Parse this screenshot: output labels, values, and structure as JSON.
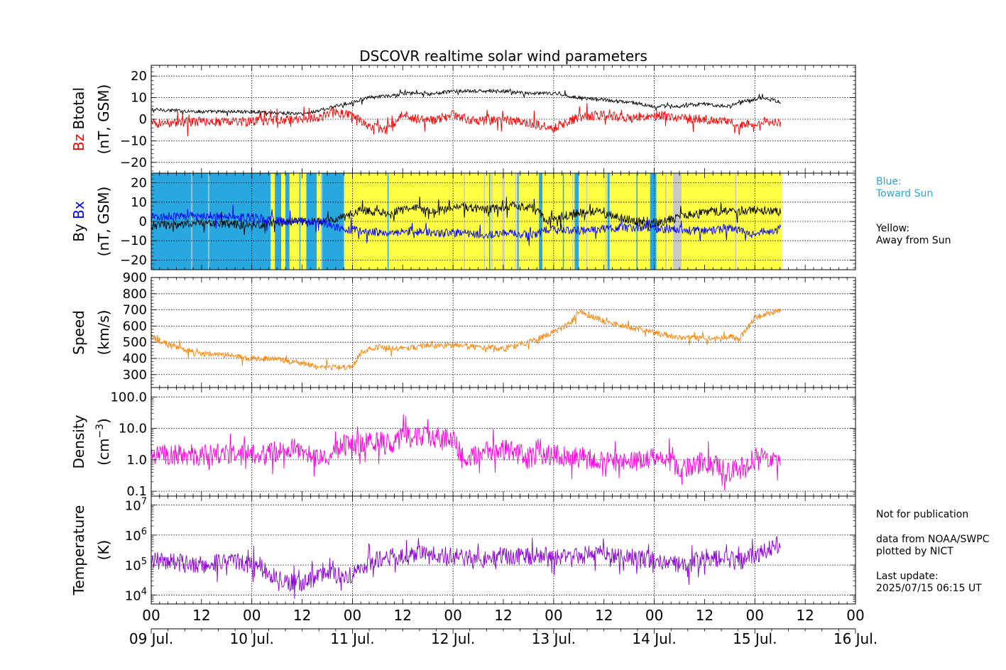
{
  "title": "DSCOVR realtime solar wind parameters",
  "chart_data": {
    "type": "line",
    "title": "DSCOVR realtime solar wind parameters",
    "x_ticks": {
      "hours": [
        "00",
        "12",
        "00",
        "12",
        "00",
        "12",
        "00",
        "12",
        "00",
        "12",
        "00",
        "12",
        "00",
        "12",
        "00"
      ],
      "dates": [
        "09 Jul.",
        "10 Jul.",
        "11 Jul.",
        "12 Jul.",
        "13 Jul.",
        "14 Jul.",
        "15 Jul.",
        "16 Jul."
      ]
    },
    "x_range_hours": [
      0,
      168
    ],
    "data_end_hour": 150.25,
    "panels": [
      {
        "id": "field",
        "ylabel_main": "(nT, GSM)",
        "ylabel_series": [
          {
            "text": "Bz",
            "color": "#ff0000"
          },
          {
            "text": "Btotal",
            "color": "#000000"
          }
        ],
        "scale": "linear",
        "ylim": [
          -25,
          25
        ],
        "yticks": [
          -20,
          -10,
          0,
          10,
          20
        ],
        "ytick_labels": [
          "−20",
          "−10",
          "0",
          "10",
          "20"
        ],
        "series": [
          {
            "name": "Btotal",
            "color": "#000000",
            "x": [
              0,
              12,
              24,
              36,
              40,
              44,
              48,
              52,
              58,
              60,
              64,
              66,
              72,
              78,
              84,
              90,
              96,
              102,
              108,
              114,
              120,
              126,
              132,
              138,
              140,
              146,
              150
            ],
            "y": [
              4.5,
              3.5,
              3.5,
              2.5,
              4,
              6,
              8,
              10,
              11,
              12,
              12,
              11.5,
              13,
              13,
              13,
              12,
              12,
              10,
              9,
              8,
              6,
              6,
              7,
              6,
              8,
              10,
              8
            ]
          },
          {
            "name": "Bz",
            "color": "#ff0000",
            "x": [
              0,
              12,
              24,
              34,
              40,
              44,
              48,
              52,
              56,
              60,
              66,
              72,
              78,
              84,
              90,
              96,
              102,
              108,
              114,
              120,
              126,
              132,
              138,
              140,
              146,
              150
            ],
            "y": [
              -2,
              -1,
              -1,
              0,
              1,
              3,
              2,
              -3,
              -5,
              2,
              -1,
              2,
              -1,
              0,
              -2,
              -4,
              1,
              2,
              0,
              2,
              1,
              0,
              -1,
              -3,
              -1,
              -2
            ]
          }
        ]
      },
      {
        "id": "imf",
        "ylabel_main": "(nT, GSM)",
        "ylabel_series": [
          {
            "text": "By",
            "color": "#000000"
          },
          {
            "text": "Bx",
            "color": "#0000ff"
          }
        ],
        "scale": "linear",
        "ylim": [
          -25,
          25
        ],
        "yticks": [
          -20,
          -10,
          0,
          10,
          20
        ],
        "ytick_labels": [
          "−20",
          "−10",
          "0",
          "10",
          "20"
        ],
        "sector_colors": {
          "toward": "#29a8e0",
          "away": "#ffff44",
          "gap": "#c8c8c8"
        },
        "sectors": [
          {
            "from": 0,
            "to": 28.5,
            "kind": "toward"
          },
          {
            "from": 28.5,
            "to": 29.5,
            "kind": "away"
          },
          {
            "from": 29.5,
            "to": 31,
            "kind": "toward"
          },
          {
            "from": 31,
            "to": 32,
            "kind": "away"
          },
          {
            "from": 32,
            "to": 33,
            "kind": "toward"
          },
          {
            "from": 33,
            "to": 37,
            "kind": "away"
          },
          {
            "from": 37,
            "to": 39.5,
            "kind": "toward"
          },
          {
            "from": 39.5,
            "to": 40.5,
            "kind": "away"
          },
          {
            "from": 40.5,
            "to": 46,
            "kind": "toward"
          },
          {
            "from": 46,
            "to": 92.5,
            "kind": "away"
          },
          {
            "from": 92.5,
            "to": 93.3,
            "kind": "toward"
          },
          {
            "from": 93.3,
            "to": 101,
            "kind": "away"
          },
          {
            "from": 101,
            "to": 102,
            "kind": "toward"
          },
          {
            "from": 102,
            "to": 119,
            "kind": "away"
          },
          {
            "from": 119,
            "to": 120.5,
            "kind": "toward"
          },
          {
            "from": 120.5,
            "to": 124.5,
            "kind": "away"
          },
          {
            "from": 124.5,
            "to": 126.5,
            "kind": "gap"
          },
          {
            "from": 126.5,
            "to": 150.5,
            "kind": "away"
          }
        ],
        "series": [
          {
            "name": "By",
            "color": "#000000",
            "x": [
              0,
              12,
              24,
              34,
              40,
              46,
              50,
              56,
              62,
              68,
              74,
              80,
              86,
              92,
              94,
              100,
              106,
              112,
              118,
              122,
              126,
              132,
              138,
              144,
              150
            ],
            "y": [
              -2,
              -1,
              -2,
              0,
              0,
              2,
              6,
              4,
              7,
              5,
              8,
              6,
              8,
              7,
              0,
              4,
              5,
              2,
              -1,
              0,
              2,
              5,
              5,
              6,
              5
            ]
          },
          {
            "name": "Bx",
            "color": "#0000ff",
            "x": [
              0,
              12,
              24,
              34,
              40,
              46,
              50,
              56,
              62,
              68,
              74,
              80,
              86,
              92,
              94,
              100,
              106,
              112,
              118,
              122,
              126,
              132,
              138,
              144,
              150
            ],
            "y": [
              2,
              3,
              2,
              0,
              0,
              -4,
              -5,
              -6,
              -5,
              -6,
              -6,
              -7,
              -6,
              -7,
              -4,
              -5,
              -4,
              -3,
              -3,
              -4,
              -4,
              -5,
              -4,
              -6,
              -4
            ]
          }
        ]
      },
      {
        "id": "speed",
        "ylabel_main": "(km/s)",
        "ylabel_series": [
          {
            "text": "Speed",
            "color": "#000000"
          }
        ],
        "scale": "linear",
        "ylim": [
          220,
          900
        ],
        "yticks": [
          300,
          400,
          500,
          600,
          700,
          800,
          900
        ],
        "ytick_labels": [
          "300",
          "400",
          "500",
          "600",
          "700",
          "800",
          "900"
        ],
        "series": [
          {
            "name": "Speed",
            "color": "#ff8000",
            "x": [
              0,
              6,
              12,
              18,
              24,
              30,
              36,
              40,
              44,
              48,
              50,
              54,
              60,
              66,
              72,
              78,
              84,
              90,
              96,
              100,
              102,
              108,
              114,
              120,
              126,
              132,
              136,
              138,
              140,
              144,
              150
            ],
            "y": [
              530,
              470,
              430,
              420,
              400,
              395,
              370,
              345,
              340,
              350,
              440,
              470,
              460,
              480,
              480,
              470,
              460,
              500,
              560,
              620,
              690,
              630,
              590,
              560,
              530,
              520,
              520,
              540,
              510,
              650,
              700
            ]
          }
        ]
      },
      {
        "id": "density",
        "ylabel_main": "(cm",
        "ylabel_sup": "−3",
        "ylabel_close": ")",
        "ylabel_series": [
          {
            "text": "Density",
            "color": "#000000"
          }
        ],
        "scale": "log",
        "ylim": [
          0.07,
          200
        ],
        "yticks": [
          0.1,
          1.0,
          10.0,
          100.0
        ],
        "ytick_labels": [
          "0.1",
          "1.0",
          "10.0",
          "100.0"
        ],
        "series": [
          {
            "name": "Density",
            "color": "#ff00dd",
            "x": [
              0,
              6,
              12,
              18,
              24,
              28,
              30,
              34,
              36,
              40,
              42,
              46,
              50,
              54,
              56,
              60,
              64,
              68,
              72,
              74,
              78,
              84,
              90,
              96,
              102,
              108,
              114,
              120,
              126,
              132,
              138,
              142,
              146,
              150
            ],
            "y": [
              1.5,
              1.5,
              1.4,
              1.5,
              1.4,
              1.5,
              2,
              2.5,
              2,
              1.2,
              1.4,
              3,
              3,
              4,
              3,
              5,
              6,
              6,
              4,
              1.2,
              1.5,
              2.2,
              1.2,
              1.5,
              1.2,
              0.8,
              0.8,
              1.2,
              0.6,
              0.8,
              0.4,
              0.6,
              1.5,
              0.8
            ]
          }
        ]
      },
      {
        "id": "temperature",
        "ylabel_main": "(K)",
        "ylabel_series": [
          {
            "text": "Temperature",
            "color": "#000000"
          }
        ],
        "scale": "log",
        "ylim": [
          5000,
          20000000
        ],
        "yticks": [
          10000,
          100000,
          1000000,
          10000000
        ],
        "ytick_labels": [
          {
            "base": "10",
            "exp": "4"
          },
          {
            "base": "10",
            "exp": "5"
          },
          {
            "base": "10",
            "exp": "6"
          },
          {
            "base": "10",
            "exp": "7"
          }
        ],
        "series": [
          {
            "name": "Temperature",
            "color": "#8a00d4",
            "x": [
              0,
              6,
              12,
              18,
              24,
              28,
              32,
              36,
              40,
              44,
              48,
              54,
              60,
              66,
              72,
              78,
              84,
              90,
              96,
              102,
              108,
              114,
              120,
              126,
              128,
              132,
              136,
              140,
              144,
              148,
              150
            ],
            "y": [
              150000,
              120000,
              100000,
              130000,
              120000,
              50000,
              30000,
              25000,
              40000,
              50000,
              50000,
              150000,
              180000,
              250000,
              200000,
              150000,
              180000,
              200000,
              200000,
              200000,
              250000,
              180000,
              150000,
              100000,
              70000,
              200000,
              150000,
              120000,
              200000,
              350000,
              500000
            ]
          }
        ]
      }
    ],
    "legend_notes": {
      "toward": "Blue:\nToward Sun",
      "away": "Yellow:\nAway from Sun"
    }
  },
  "footer": {
    "note1": "Not for publication",
    "note2": "data from NOAA/SWPC\nplotted by NICT",
    "note3": "Last update:\n2025/07/15 06:15 UT"
  }
}
